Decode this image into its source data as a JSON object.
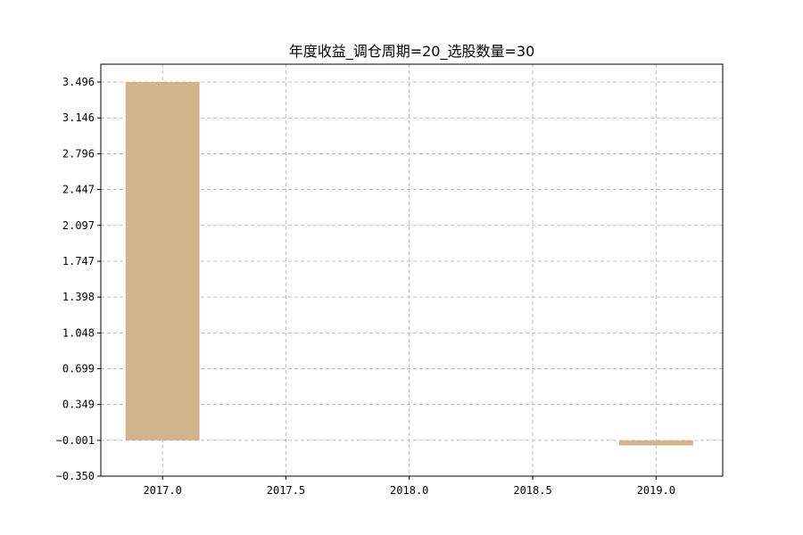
{
  "chart_data": {
    "type": "bar",
    "title": "年度收益_调仓周期=20_选股数量=30",
    "xlabel": "",
    "ylabel": "",
    "x": [
      2017,
      2019
    ],
    "values": [
      3.496,
      -0.05
    ],
    "bar_width": 0.3,
    "bar_color": "#d2b48c",
    "xlim": [
      2016.75,
      2019.27
    ],
    "ylim": [
      -0.35,
      3.67
    ],
    "xticks": [
      2017.0,
      2017.5,
      2018.0,
      2018.5,
      2019.0
    ],
    "xtick_labels": [
      "2017.0",
      "2017.5",
      "2018.0",
      "2018.5",
      "2019.0"
    ],
    "yticks": [
      -0.35,
      -0.001,
      0.349,
      0.699,
      1.048,
      1.398,
      1.747,
      2.097,
      2.447,
      2.796,
      3.146,
      3.496
    ],
    "ytick_labels": [
      "−0.350",
      "−0.001",
      "0.349",
      "0.699",
      "1.048",
      "1.398",
      "1.747",
      "2.097",
      "2.447",
      "2.796",
      "3.146",
      "3.496"
    ],
    "grid": true,
    "legend": false
  }
}
